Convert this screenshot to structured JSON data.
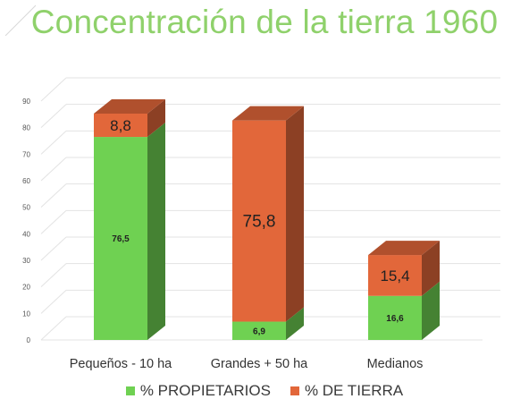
{
  "chart_data": {
    "type": "bar",
    "stacked": true,
    "view": "3d",
    "title": "Concentración de la tierra 1960",
    "categories": [
      "Pequeños - 10 ha",
      "Grandes + 50 ha",
      "Medianos"
    ],
    "series": [
      {
        "name": "% PROPIETARIOS",
        "color": "#6fd152",
        "values": [
          76.5,
          6.9,
          16.6
        ],
        "labels": [
          "76,5",
          "6,9",
          "16,6"
        ]
      },
      {
        "name": "% DE TIERRA",
        "color": "#e2673a",
        "values": [
          8.8,
          75.8,
          15.4
        ],
        "labels": [
          "8,8",
          "75,8",
          "15,4"
        ]
      }
    ],
    "ylim": [
      0,
      90
    ],
    "yticks": [
      0,
      10,
      20,
      30,
      40,
      50,
      60,
      70,
      80,
      90
    ],
    "grid": true,
    "legend": "bottom"
  }
}
